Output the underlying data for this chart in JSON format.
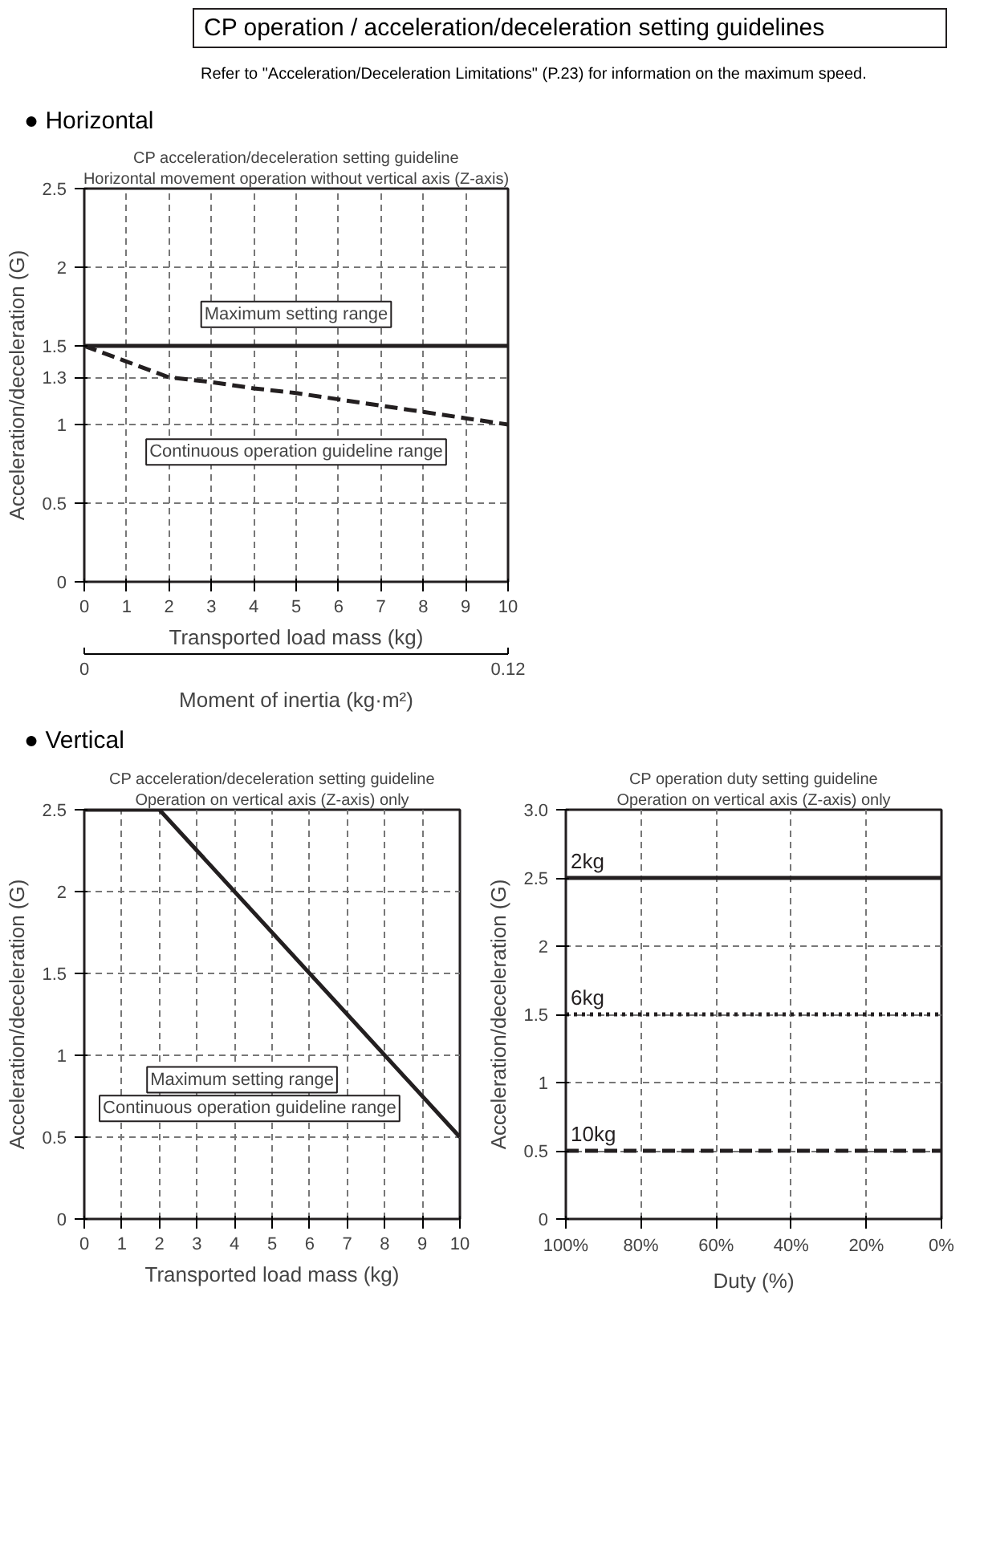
{
  "chart_data": [
    {
      "type": "other",
      "title": "CP operation / acceleration/deceleration setting guidelines",
      "subtitle": "Refer to \"Acceleration/Deceleration Limitations\" (P.23) for information on the maximum speed."
    },
    {
      "type": "other",
      "title": "● Horizontal"
    },
    {
      "type": "line",
      "title": "CP acceleration/deceleration setting guideline",
      "subtitle": "Horizontal movement operation without vertical axis (Z-axis)",
      "xlabel": "Transported load mass (kg)",
      "ylabel": "Acceleration/deceleration (G)",
      "x2label": "Moment of inertia (kg·m²)",
      "annotations": [
        "Maximum setting range",
        "Continuous operation guideline range"
      ],
      "xlim": [
        0,
        10
      ],
      "xticks": [
        0,
        1,
        2,
        3,
        4,
        5,
        6,
        7,
        8,
        9,
        10
      ],
      "ylim": [
        0,
        2.5
      ],
      "yticks": [
        0,
        0.5,
        1,
        1.3,
        1.5,
        2,
        2.5
      ],
      "x2lim": [
        0,
        0.12
      ],
      "x2ticks": [
        0,
        0.12
      ],
      "grid": true,
      "series": [
        {
          "color": "#231f20",
          "line_style": "solid",
          "x": [
            0,
            10
          ],
          "values": [
            1.5,
            1.5
          ]
        },
        {
          "color": "#231f20",
          "line_style": "dashed",
          "x": [
            0,
            1,
            2,
            3,
            4,
            5,
            6,
            7,
            8,
            9,
            10
          ],
          "values": [
            1.5,
            1.4,
            1.3,
            1.27,
            1.23,
            1.2,
            1.16,
            1.12,
            1.08,
            1.04,
            1.0
          ]
        }
      ]
    },
    {
      "type": "other",
      "title": "● Vertical"
    },
    {
      "type": "line",
      "title": "CP acceleration/deceleration setting guideline",
      "subtitle": "Operation on vertical axis (Z-axis) only",
      "xlabel": "Transported load mass (kg)",
      "ylabel": "Acceleration/deceleration (G)",
      "annotations": [
        "Maximum setting range",
        "Continuous operation guideline range"
      ],
      "xlim": [
        0,
        10
      ],
      "xticks": [
        0,
        1,
        2,
        3,
        4,
        5,
        6,
        7,
        8,
        9,
        10
      ],
      "ylim": [
        0,
        2.5
      ],
      "yticks": [
        0,
        0.5,
        1,
        1.5,
        2,
        2.5
      ],
      "grid": true,
      "series": [
        {
          "color": "#231f20",
          "line_style": "solid",
          "x": [
            0,
            2,
            10
          ],
          "values": [
            2.5,
            2.5,
            0.5
          ]
        }
      ]
    },
    {
      "type": "line",
      "title": "CP operation duty setting guideline",
      "subtitle": "Operation on vertical axis (Z-axis) only",
      "xlabel": "Duty (%)",
      "ylabel": "Acceleration/deceleration (G)",
      "xlim": [
        100,
        0
      ],
      "xticks": [
        {
          "value": 100,
          "label": "100%"
        },
        {
          "value": 80,
          "label": "80%"
        },
        {
          "value": 60,
          "label": "60%"
        },
        {
          "value": 40,
          "label": "40%"
        },
        {
          "value": 20,
          "label": "20%"
        },
        {
          "value": 0,
          "label": "0%"
        }
      ],
      "ylim": [
        0,
        3
      ],
      "yticks": [
        0,
        0.5,
        1,
        1.5,
        2,
        2.5,
        {
          "value": 3,
          "label": "3.0"
        }
      ],
      "grid": true,
      "series": [
        {
          "name": "2kg",
          "color": "#231f20",
          "line_style": "solid",
          "x": [
            100,
            0
          ],
          "values": [
            2.5,
            2.5
          ]
        },
        {
          "name": "6kg",
          "color": "#231f20",
          "line_style": "dotted",
          "x": [
            100,
            0
          ],
          "values": [
            1.5,
            1.5
          ]
        },
        {
          "name": "10kg",
          "color": "#231f20",
          "line_style": "dashed",
          "x": [
            100,
            0
          ],
          "values": [
            0.5,
            0.5
          ]
        }
      ]
    }
  ]
}
